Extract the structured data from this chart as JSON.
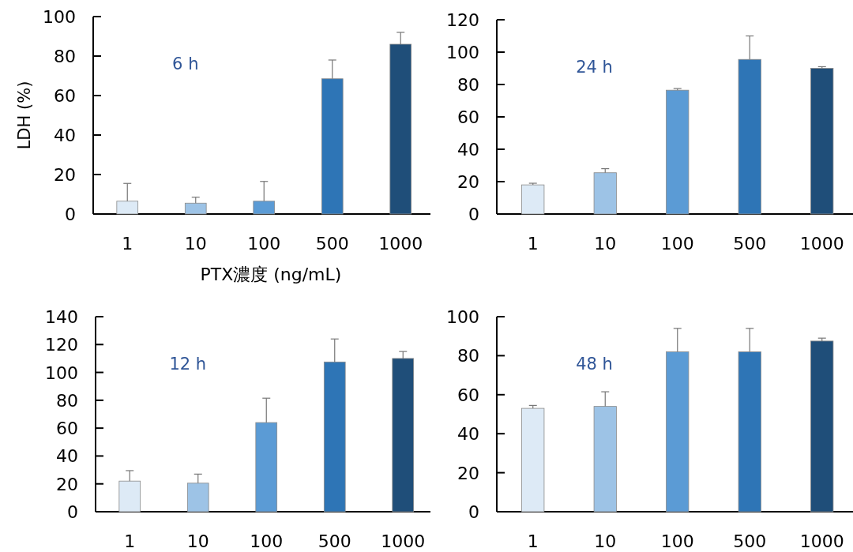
{
  "chart_data": [
    {
      "type": "bar",
      "ylabel": "LDH (%)",
      "xlabel": "PTX濃度 (ng/mL)",
      "annotations": [
        "6 h"
      ],
      "categories": [
        "1",
        "10",
        "100",
        "500",
        "1000"
      ],
      "values": [
        6.5,
        5.5,
        6.5,
        68.5,
        86
      ],
      "errors": [
        [
          6.5,
          15.5
        ],
        [
          5.5,
          8.5
        ],
        [
          6.5,
          16.5
        ],
        [
          68.5,
          78
        ],
        [
          86,
          92
        ]
      ],
      "colors": [
        "#ddeaf6",
        "#9dc3e6",
        "#5b9bd5",
        "#2e75b6",
        "#1f4e79"
      ],
      "ylim": [
        0,
        100
      ],
      "yticks": [
        0,
        20,
        40,
        60,
        80,
        100
      ]
    },
    {
      "type": "bar",
      "annotations": [
        "24 h"
      ],
      "categories": [
        "1",
        "10",
        "100",
        "500",
        "1000"
      ],
      "values": [
        18,
        25.5,
        76.5,
        95.5,
        90
      ],
      "errors": [
        [
          18,
          19
        ],
        [
          25.5,
          28
        ],
        [
          76.5,
          77.5
        ],
        [
          95.5,
          110
        ],
        [
          90,
          91
        ]
      ],
      "colors": [
        "#ddeaf6",
        "#9dc3e6",
        "#5b9bd5",
        "#2e75b6",
        "#1f4e79"
      ],
      "ylim": [
        0,
        120
      ],
      "yticks": [
        0,
        20,
        40,
        60,
        80,
        100,
        120
      ]
    },
    {
      "type": "bar",
      "annotations": [
        "12 h"
      ],
      "categories": [
        "1",
        "10",
        "100",
        "500",
        "1000"
      ],
      "values": [
        22,
        20.5,
        64,
        107.5,
        110
      ],
      "errors": [
        [
          22,
          29.5
        ],
        [
          20.5,
          27
        ],
        [
          64,
          81.5
        ],
        [
          107.5,
          124
        ],
        [
          110,
          115
        ]
      ],
      "colors": [
        "#ddeaf6",
        "#9dc3e6",
        "#5b9bd5",
        "#2e75b6",
        "#1f4e79"
      ],
      "ylim": [
        0,
        140
      ],
      "yticks": [
        0,
        20,
        40,
        60,
        80,
        100,
        120,
        140
      ]
    },
    {
      "type": "bar",
      "annotations": [
        "48 h"
      ],
      "categories": [
        "1",
        "10",
        "100",
        "500",
        "1000"
      ],
      "values": [
        53,
        54,
        82,
        82,
        87.5
      ],
      "errors": [
        [
          53,
          54.5
        ],
        [
          54,
          61.5
        ],
        [
          82,
          94
        ],
        [
          82,
          94
        ],
        [
          87.5,
          89
        ]
      ],
      "colors": [
        "#ddeaf6",
        "#9dc3e6",
        "#5b9bd5",
        "#2e75b6",
        "#1f4e79"
      ],
      "ylim": [
        0,
        100
      ],
      "yticks": [
        0,
        20,
        40,
        60,
        80,
        100
      ]
    }
  ]
}
